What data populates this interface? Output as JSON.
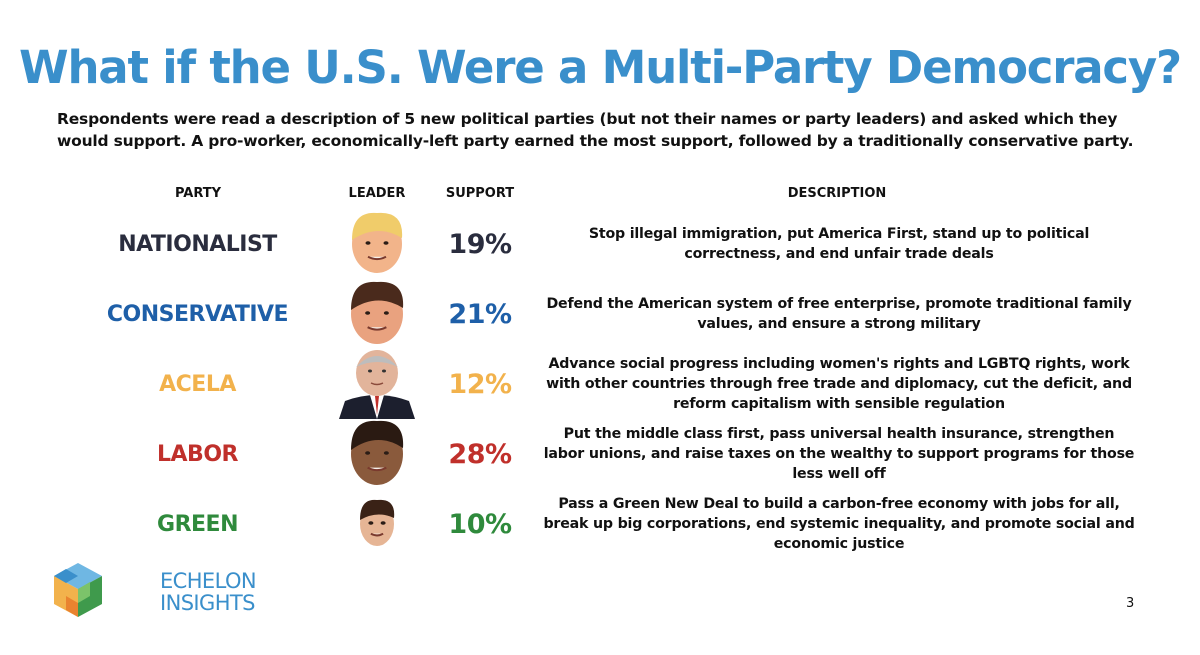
{
  "title": "What if the U.S. Were a Multi-Party Democracy?",
  "subtitle": "Respondents were read a description of 5 new political parties (but not their names or party leaders) and asked which they would support. A pro-worker, economically-left party earned the most support, followed by a traditionally conservative party.",
  "headers": {
    "party": "PARTY",
    "leader": "LEADER",
    "support": "SUPPORT",
    "description": "DESCRIPTION"
  },
  "chart_data": {
    "type": "table",
    "columns": [
      "PARTY",
      "LEADER",
      "SUPPORT",
      "DESCRIPTION"
    ],
    "rows": [
      {
        "party": "NATIONALIST",
        "support": "19%",
        "value": 19,
        "color": "#2a2d3e",
        "description": "Stop illegal immigration, put America First, stand up to political correctness, and end unfair trade deals"
      },
      {
        "party": "CONSERVATIVE",
        "support": "21%",
        "value": 21,
        "color": "#1e5fa8",
        "description": "Defend the American system of free enterprise, promote traditional family values, and ensure a strong military"
      },
      {
        "party": "ACELA",
        "support": "12%",
        "value": 12,
        "color": "#f2b24c",
        "description": "Advance social progress including women's rights and LGBTQ rights, work with other countries through free trade and diplomacy, cut the deficit, and reform capitalism with sensible regulation"
      },
      {
        "party": "LABOR",
        "support": "28%",
        "value": 28,
        "color": "#c0302b",
        "description": "Put the middle class first, pass universal health insurance, strengthen labor unions, and raise taxes on the wealthy to support programs for those less well off"
      },
      {
        "party": "GREEN",
        "support": "10%",
        "value": 10,
        "color": "#2f8a3c",
        "description": "Pass a Green New Deal to build a carbon-free economy with jobs for all, break up big corporations, end systemic inequality, and promote social and economic justice"
      }
    ]
  },
  "logo": {
    "line1": "ECHELON",
    "line2": "INSIGHTS"
  },
  "page_number": "3",
  "colors": {
    "title": "#3a8fcb",
    "logo": "#3a8fcb"
  }
}
